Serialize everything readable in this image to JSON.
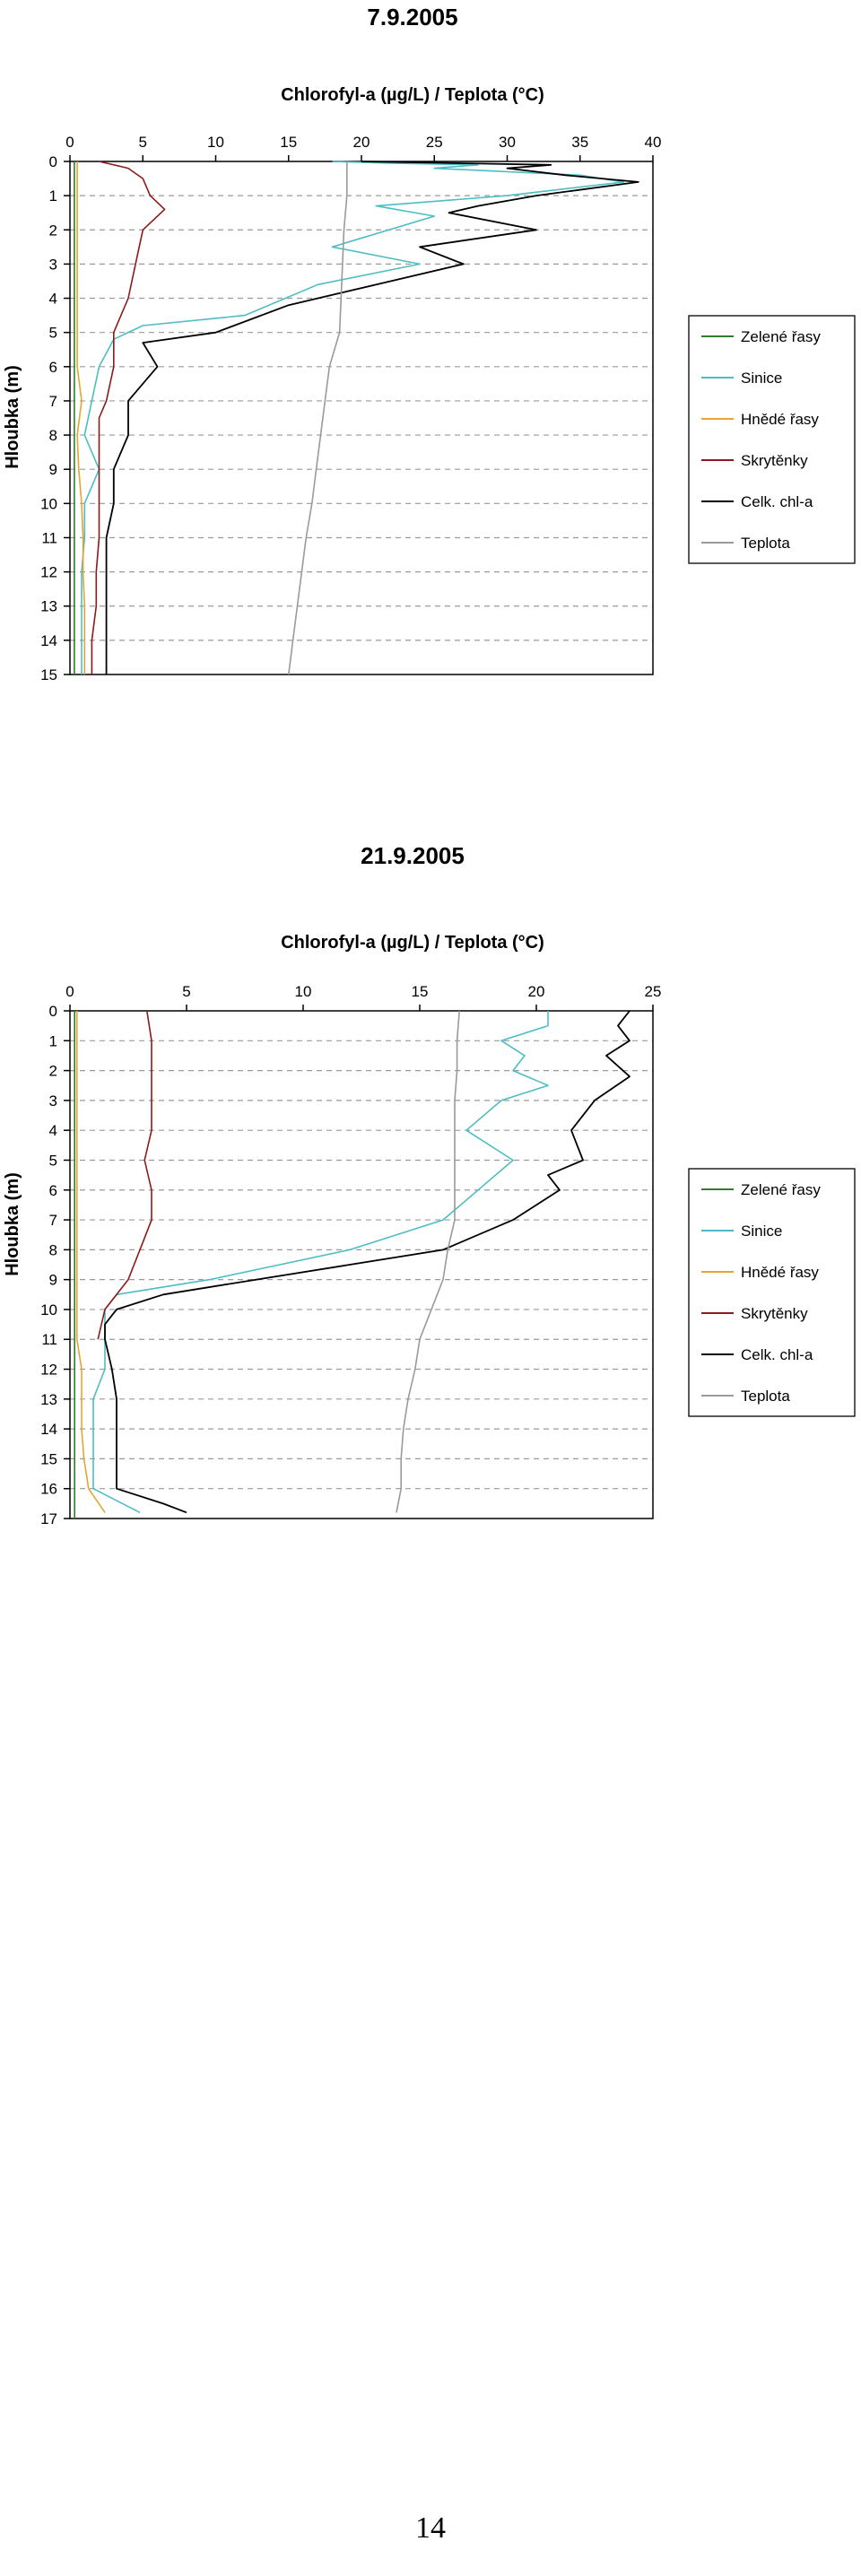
{
  "page_number": "14",
  "colors": {
    "zelene": "#2e7d2e",
    "sinice": "#4dbdc4",
    "hnede": "#e8a431",
    "skrytenky": "#8b1a1a",
    "celk": "#000000",
    "teplota": "#9a9a9a",
    "grid": "#9a9a9a"
  },
  "chart_data": [
    {
      "type": "line",
      "title": "7.9.2005",
      "xlabel": "Chlorofyl-a (µg/L) / Teplota (°C)",
      "ylabel": "Hloubka (m)",
      "xlim": [
        0,
        40
      ],
      "ylim": [
        0,
        15
      ],
      "x_ticks": [
        "0",
        "5",
        "10",
        "15",
        "20",
        "25",
        "30",
        "35",
        "40"
      ],
      "y_ticks": [
        "0",
        "1",
        "2",
        "3",
        "4",
        "5",
        "6",
        "7",
        "8",
        "9",
        "10",
        "11",
        "12",
        "13",
        "14",
        "15"
      ],
      "y_inverted": true,
      "grid": "horizontal dashed",
      "legend_position": "right",
      "series": [
        {
          "name": "Zelené řasy",
          "color_key": "zelene",
          "points": [
            [
              0.3,
              0
            ],
            [
              0.3,
              1
            ],
            [
              0.3,
              2
            ],
            [
              0.3,
              3
            ],
            [
              0.3,
              4
            ],
            [
              0.3,
              5
            ],
            [
              0.3,
              6
            ],
            [
              0.3,
              7
            ],
            [
              0.3,
              8
            ],
            [
              0.3,
              9
            ],
            [
              0.3,
              10
            ],
            [
              0.3,
              11
            ],
            [
              0.3,
              12
            ],
            [
              0.3,
              13
            ],
            [
              0.3,
              14
            ],
            [
              0.3,
              15
            ]
          ]
        },
        {
          "name": "Sinice",
          "color_key": "sinice",
          "points": [
            [
              18,
              0
            ],
            [
              22,
              0.05
            ],
            [
              28,
              0.1
            ],
            [
              25,
              0.2
            ],
            [
              35,
              0.4
            ],
            [
              38,
              0.6
            ],
            [
              30,
              1
            ],
            [
              21,
              1.3
            ],
            [
              25,
              1.6
            ],
            [
              18,
              2.5
            ],
            [
              24,
              3
            ],
            [
              17,
              3.6
            ],
            [
              12,
              4.5
            ],
            [
              5,
              4.8
            ],
            [
              3,
              5.2
            ],
            [
              2,
              6
            ],
            [
              1.5,
              7
            ],
            [
              1,
              8
            ],
            [
              2,
              9
            ],
            [
              1,
              10
            ],
            [
              1,
              11
            ],
            [
              0.8,
              12
            ],
            [
              0.8,
              13
            ],
            [
              0.8,
              14
            ],
            [
              0.8,
              15
            ]
          ]
        },
        {
          "name": "Hnědé řasy",
          "color_key": "hnede",
          "points": [
            [
              0.5,
              0
            ],
            [
              0.5,
              1
            ],
            [
              0.5,
              2
            ],
            [
              0.5,
              3
            ],
            [
              0.5,
              4
            ],
            [
              0.5,
              5
            ],
            [
              0.5,
              6
            ],
            [
              0.8,
              7
            ],
            [
              0.5,
              8
            ],
            [
              0.6,
              9
            ],
            [
              0.8,
              10
            ],
            [
              0.9,
              11
            ],
            [
              0.9,
              12
            ],
            [
              1,
              13
            ],
            [
              1,
              14
            ],
            [
              1,
              15
            ]
          ]
        },
        {
          "name": "Skrytěnky",
          "color_key": "skrytenky",
          "points": [
            [
              2,
              0
            ],
            [
              4,
              0.2
            ],
            [
              5,
              0.5
            ],
            [
              5.5,
              1
            ],
            [
              6.5,
              1.4
            ],
            [
              5,
              2
            ],
            [
              4.5,
              3
            ],
            [
              4,
              4
            ],
            [
              3,
              5
            ],
            [
              3,
              6
            ],
            [
              2.5,
              7
            ],
            [
              2,
              7.5
            ],
            [
              2,
              8
            ],
            [
              2,
              9
            ],
            [
              2,
              10
            ],
            [
              2,
              11
            ],
            [
              1.8,
              12
            ],
            [
              1.8,
              13
            ],
            [
              1.5,
              14
            ],
            [
              1.5,
              15
            ]
          ]
        },
        {
          "name": "Celk. chl-a",
          "color_key": "celk",
          "points": [
            [
              20,
              0
            ],
            [
              33,
              0.1
            ],
            [
              30,
              0.2
            ],
            [
              34,
              0.4
            ],
            [
              39,
              0.6
            ],
            [
              32,
              1
            ],
            [
              28,
              1.3
            ],
            [
              26,
              1.5
            ],
            [
              32,
              2
            ],
            [
              24,
              2.5
            ],
            [
              27,
              3
            ],
            [
              22,
              3.5
            ],
            [
              15,
              4.2
            ],
            [
              10,
              5
            ],
            [
              5,
              5.3
            ],
            [
              6,
              6
            ],
            [
              4,
              7
            ],
            [
              4,
              8
            ],
            [
              3,
              9
            ],
            [
              3,
              10
            ],
            [
              2.5,
              11
            ],
            [
              2.5,
              12
            ],
            [
              2.5,
              13
            ],
            [
              2.5,
              14
            ],
            [
              2.5,
              15
            ]
          ]
        },
        {
          "name": "Teplota",
          "color_key": "teplota",
          "points": [
            [
              19,
              0
            ],
            [
              19,
              1
            ],
            [
              18.8,
              2
            ],
            [
              18.7,
              3
            ],
            [
              18.6,
              4
            ],
            [
              18.5,
              5
            ],
            [
              17.8,
              6
            ],
            [
              17.5,
              7
            ],
            [
              17.2,
              8
            ],
            [
              16.9,
              9
            ],
            [
              16.6,
              10
            ],
            [
              16.2,
              11
            ],
            [
              15.9,
              12
            ],
            [
              15.6,
              13
            ],
            [
              15.3,
              14
            ],
            [
              15,
              15
            ]
          ]
        }
      ]
    },
    {
      "type": "line",
      "title": "21.9.2005",
      "xlabel": "Chlorofyl-a (µg/L) / Teplota (°C)",
      "ylabel": "Hloubka (m)",
      "xlim": [
        0,
        25
      ],
      "ylim": [
        0,
        17
      ],
      "x_ticks": [
        "0",
        "5",
        "10",
        "15",
        "20",
        "25"
      ],
      "y_ticks": [
        "0",
        "1",
        "2",
        "3",
        "4",
        "5",
        "6",
        "7",
        "8",
        "9",
        "10",
        "11",
        "12",
        "13",
        "14",
        "15",
        "16",
        "17"
      ],
      "y_inverted": true,
      "grid": "horizontal dashed",
      "legend_position": "right",
      "series": [
        {
          "name": "Zelené řasy",
          "color_key": "zelene",
          "points": [
            [
              0.2,
              0
            ],
            [
              0.2,
              2
            ],
            [
              0.2,
              4
            ],
            [
              0.2,
              6
            ],
            [
              0.2,
              8
            ],
            [
              0.2,
              10
            ],
            [
              0.2,
              12
            ],
            [
              0.2,
              14
            ],
            [
              0.2,
              16
            ],
            [
              0.2,
              17
            ]
          ]
        },
        {
          "name": "Sinice",
          "color_key": "sinice",
          "points": [
            [
              20.5,
              0
            ],
            [
              20.5,
              0.5
            ],
            [
              18.5,
              1
            ],
            [
              19.5,
              1.5
            ],
            [
              19,
              2
            ],
            [
              20.5,
              2.5
            ],
            [
              18.5,
              3
            ],
            [
              17,
              4
            ],
            [
              19,
              5
            ],
            [
              17.5,
              6
            ],
            [
              16,
              7
            ],
            [
              12,
              8
            ],
            [
              9,
              8.5
            ],
            [
              6,
              9
            ],
            [
              2,
              9.5
            ],
            [
              1.5,
              10
            ],
            [
              1.5,
              11
            ],
            [
              1.5,
              12
            ],
            [
              1,
              13
            ],
            [
              1,
              14
            ],
            [
              1,
              15
            ],
            [
              1,
              16
            ],
            [
              3,
              16.8
            ]
          ]
        },
        {
          "name": "Hnědé řasy",
          "color_key": "hnede",
          "points": [
            [
              0.3,
              0
            ],
            [
              0.3,
              3
            ],
            [
              0.3,
              6
            ],
            [
              0.3,
              9
            ],
            [
              0.3,
              11
            ],
            [
              0.5,
              12
            ],
            [
              0.5,
              13
            ],
            [
              0.5,
              14
            ],
            [
              0.6,
              15
            ],
            [
              0.8,
              16
            ],
            [
              1.5,
              16.8
            ]
          ]
        },
        {
          "name": "Skrytěnky",
          "color_key": "skrytenky",
          "points": [
            [
              3.3,
              0
            ],
            [
              3.5,
              1
            ],
            [
              3.5,
              2
            ],
            [
              3.5,
              3
            ],
            [
              3.5,
              4
            ],
            [
              3.2,
              5
            ],
            [
              3.5,
              6
            ],
            [
              3.5,
              7
            ],
            [
              3,
              8
            ],
            [
              2.5,
              9
            ],
            [
              2,
              9.5
            ],
            [
              1.5,
              10
            ],
            [
              1.2,
              11
            ]
          ]
        },
        {
          "name": "Celk. chl-a",
          "color_key": "celk",
          "points": [
            [
              24,
              0
            ],
            [
              23.5,
              0.5
            ],
            [
              24,
              1
            ],
            [
              23,
              1.5
            ],
            [
              24,
              2.2
            ],
            [
              22.5,
              3
            ],
            [
              21.5,
              4
            ],
            [
              22,
              5
            ],
            [
              20.5,
              5.5
            ],
            [
              21,
              6
            ],
            [
              19,
              7
            ],
            [
              16,
              8
            ],
            [
              12,
              8.5
            ],
            [
              8,
              9
            ],
            [
              4,
              9.5
            ],
            [
              2,
              10
            ],
            [
              1.5,
              10.5
            ],
            [
              1.5,
              11
            ],
            [
              1.8,
              12
            ],
            [
              2,
              13
            ],
            [
              2,
              14
            ],
            [
              2,
              15
            ],
            [
              2,
              16
            ],
            [
              4,
              16.5
            ],
            [
              5,
              16.8
            ]
          ]
        },
        {
          "name": "Teplota",
          "color_key": "teplota",
          "points": [
            [
              16.7,
              0
            ],
            [
              16.6,
              1
            ],
            [
              16.6,
              2
            ],
            [
              16.5,
              3
            ],
            [
              16.5,
              4
            ],
            [
              16.5,
              5
            ],
            [
              16.5,
              6
            ],
            [
              16.5,
              7
            ],
            [
              16.2,
              8
            ],
            [
              16,
              9
            ],
            [
              15.5,
              10
            ],
            [
              15,
              11
            ],
            [
              14.8,
              12
            ],
            [
              14.5,
              13
            ],
            [
              14.3,
              14
            ],
            [
              14.2,
              15
            ],
            [
              14.2,
              16
            ],
            [
              14,
              16.8
            ]
          ]
        }
      ]
    }
  ]
}
